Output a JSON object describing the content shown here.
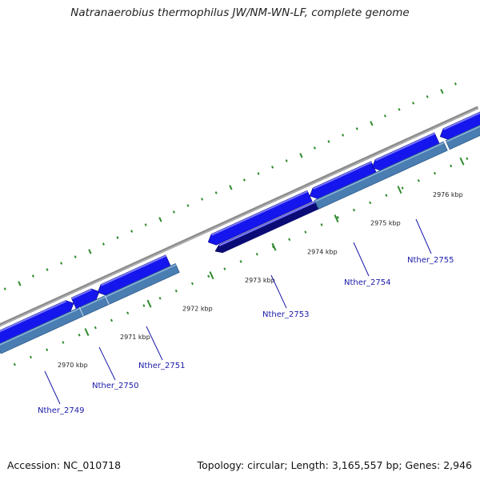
{
  "title": "Natranaerobius thermophilus JW/NM-WN-LF, complete genome",
  "accession": "Accession: NC_010718",
  "stats": "Topology: circular; Length: 3,165,557 bp; Genes: 2,946",
  "colors": {
    "backbone": "#8c8c8c",
    "gene_blue": "#1515ee",
    "gene_navy": "#0b0b78",
    "gene_purple": "#4a3c96",
    "steel": "#4a7eb2",
    "tick": "#2e8b2e",
    "label": "#1a1aa8"
  },
  "ticks": [
    {
      "label": "2970 kbp"
    },
    {
      "label": "2971 kbp"
    },
    {
      "label": "2972 kbp"
    },
    {
      "label": "2973 kbp"
    },
    {
      "label": "2974 kbp"
    },
    {
      "label": "2975 kbp"
    },
    {
      "label": "2976 kbp"
    }
  ],
  "genes": [
    {
      "label": "Nther_2749"
    },
    {
      "label": "Nther_2750"
    },
    {
      "label": "Nther_2751"
    },
    {
      "label": "Nther_2753"
    },
    {
      "label": "Nther_2754"
    },
    {
      "label": "Nther_2755"
    }
  ]
}
